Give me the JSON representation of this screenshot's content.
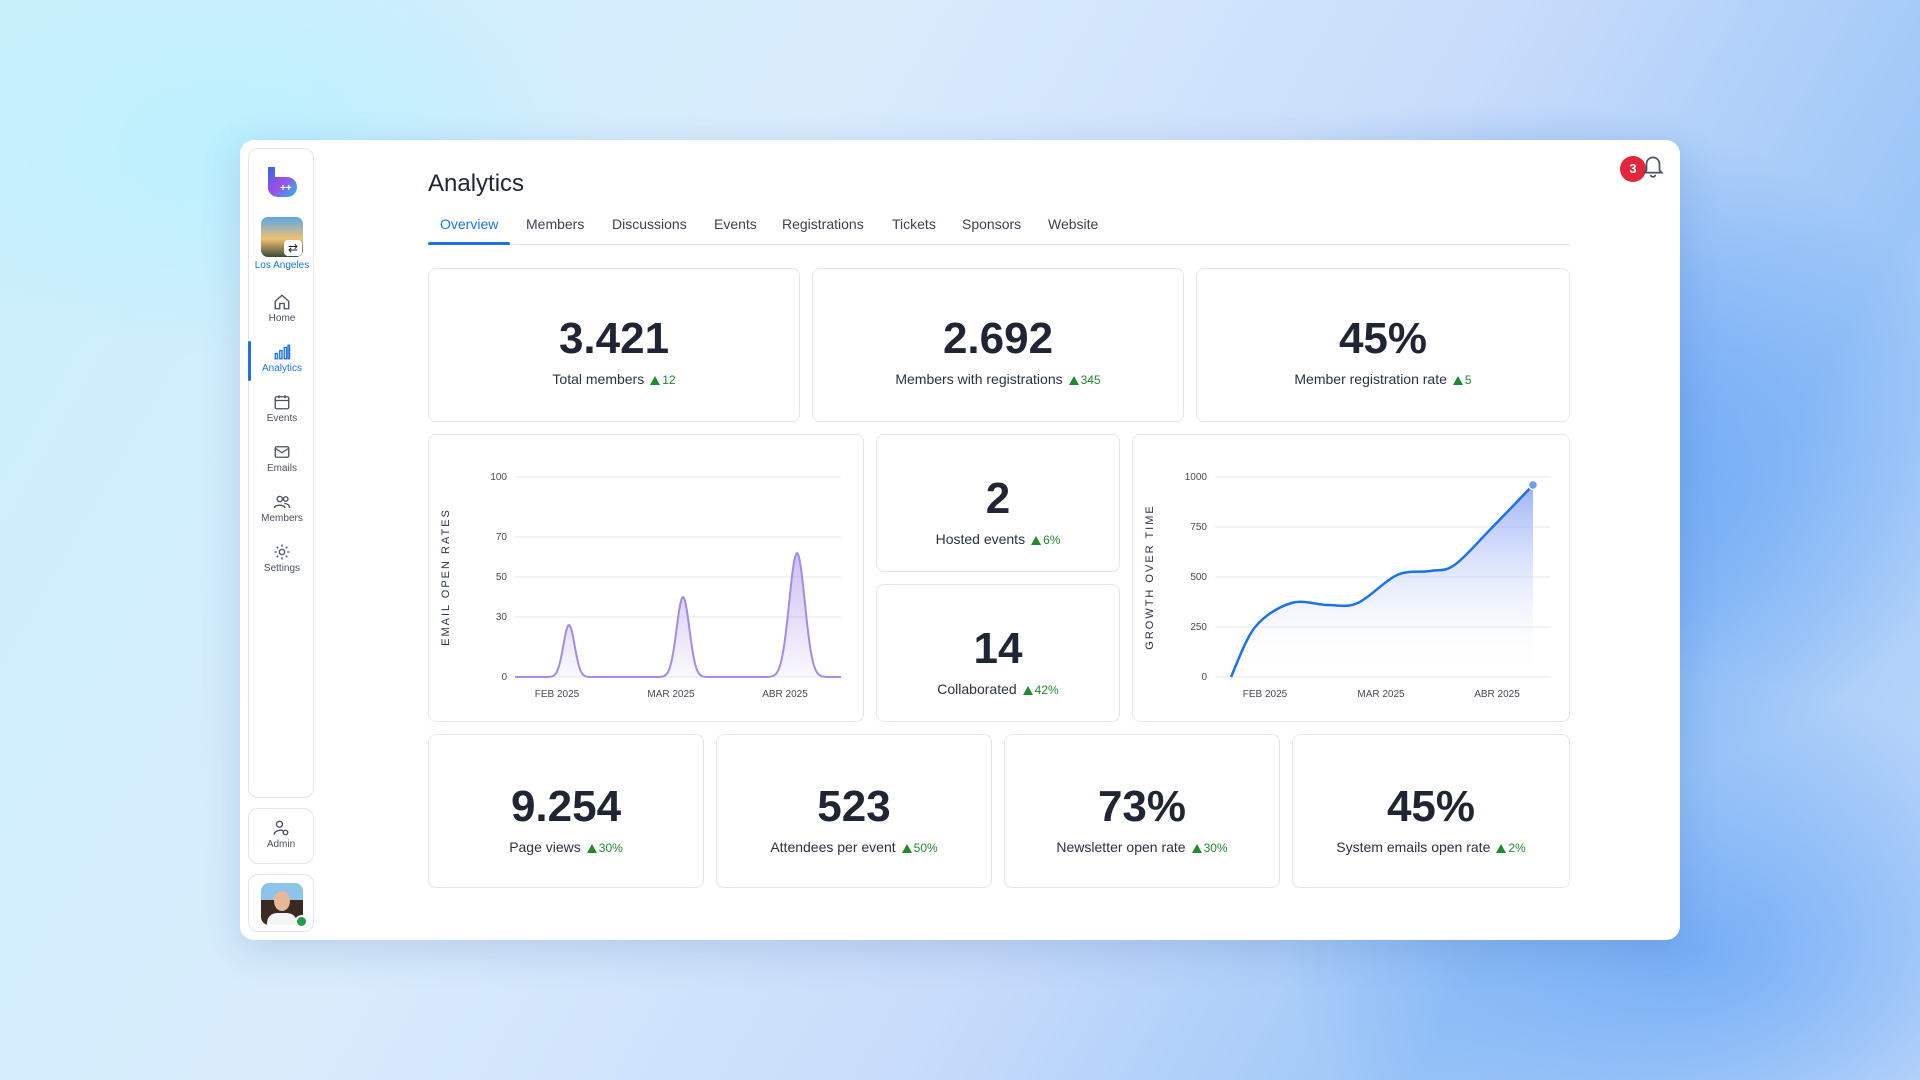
{
  "sidebar": {
    "city": "Los Angeles",
    "items": [
      {
        "label": "Home",
        "icon": "home-icon"
      },
      {
        "label": "Analytics",
        "icon": "analytics-icon",
        "active": true
      },
      {
        "label": "Events",
        "icon": "calendar-icon"
      },
      {
        "label": "Emails",
        "icon": "mail-icon"
      },
      {
        "label": "Members",
        "icon": "members-icon"
      },
      {
        "label": "Settings",
        "icon": "gear-icon"
      }
    ],
    "admin_label": "Admin"
  },
  "header": {
    "title": "Analytics",
    "notifications": "3",
    "tabs": [
      "Overview",
      "Members",
      "Discussions",
      "Events",
      "Registrations",
      "Tickets",
      "Sponsors",
      "Website"
    ]
  },
  "stats": {
    "total_members": {
      "value": "3.421",
      "label": "Total members",
      "delta": "12"
    },
    "members_with_registrations": {
      "value": "2.692",
      "label": "Members with registrations",
      "delta": "345"
    },
    "member_registration_rate": {
      "value": "45%",
      "label": "Member registration rate",
      "delta": "5"
    },
    "hosted_events": {
      "value": "2",
      "label": "Hosted events",
      "delta": "6%"
    },
    "collaborated": {
      "value": "14",
      "label": "Collaborated",
      "delta": "42%"
    },
    "page_views": {
      "value": "9.254",
      "label": "Page views",
      "delta": "30%"
    },
    "attendees_per_event": {
      "value": "523",
      "label": "Attendees per event",
      "delta": "50%"
    },
    "newsletter_open_rate": {
      "value": "73%",
      "label": "Newsletter open rate",
      "delta": "30%"
    },
    "system_emails_open_rate": {
      "value": "45%",
      "label": "System emails open rate",
      "delta": "2%"
    }
  },
  "colors": {
    "accent": "#1a73e8",
    "positive": "#1f8a2e",
    "badge": "#e3263a",
    "purple": "#a48be8"
  },
  "chart_data": [
    {
      "type": "line",
      "ylabel": "EMAIL OPEN RATES",
      "xlabel": "",
      "yticks": [
        0,
        30,
        50,
        70,
        100
      ],
      "ylim": [
        0,
        100
      ],
      "xticks": [
        "FEB 2025",
        "MAR 2025",
        "ABR 2025"
      ],
      "series": [
        {
          "peaks": [
            {
              "at": "FEB 2025",
              "value": 26
            },
            {
              "at": "MAR 2025",
              "value": 40
            },
            {
              "at": "ABR 2025",
              "value": 62
            }
          ]
        }
      ]
    },
    {
      "type": "area",
      "ylabel": "GROWTH OVER TIME",
      "xlabel": "",
      "yticks": [
        0,
        250,
        500,
        750,
        1000
      ],
      "ylim": [
        0,
        1000
      ],
      "xticks": [
        "FEB 2025",
        "MAR 2025",
        "ABR 2025"
      ],
      "series": [
        {
          "points": [
            {
              "x": 0.0,
              "y": 0
            },
            {
              "x": 0.08,
              "y": 250
            },
            {
              "x": 0.2,
              "y": 370
            },
            {
              "x": 0.32,
              "y": 360
            },
            {
              "x": 0.42,
              "y": 370
            },
            {
              "x": 0.55,
              "y": 510
            },
            {
              "x": 0.66,
              "y": 530
            },
            {
              "x": 0.74,
              "y": 560
            },
            {
              "x": 0.86,
              "y": 740
            },
            {
              "x": 1.0,
              "y": 960
            }
          ]
        }
      ]
    }
  ]
}
